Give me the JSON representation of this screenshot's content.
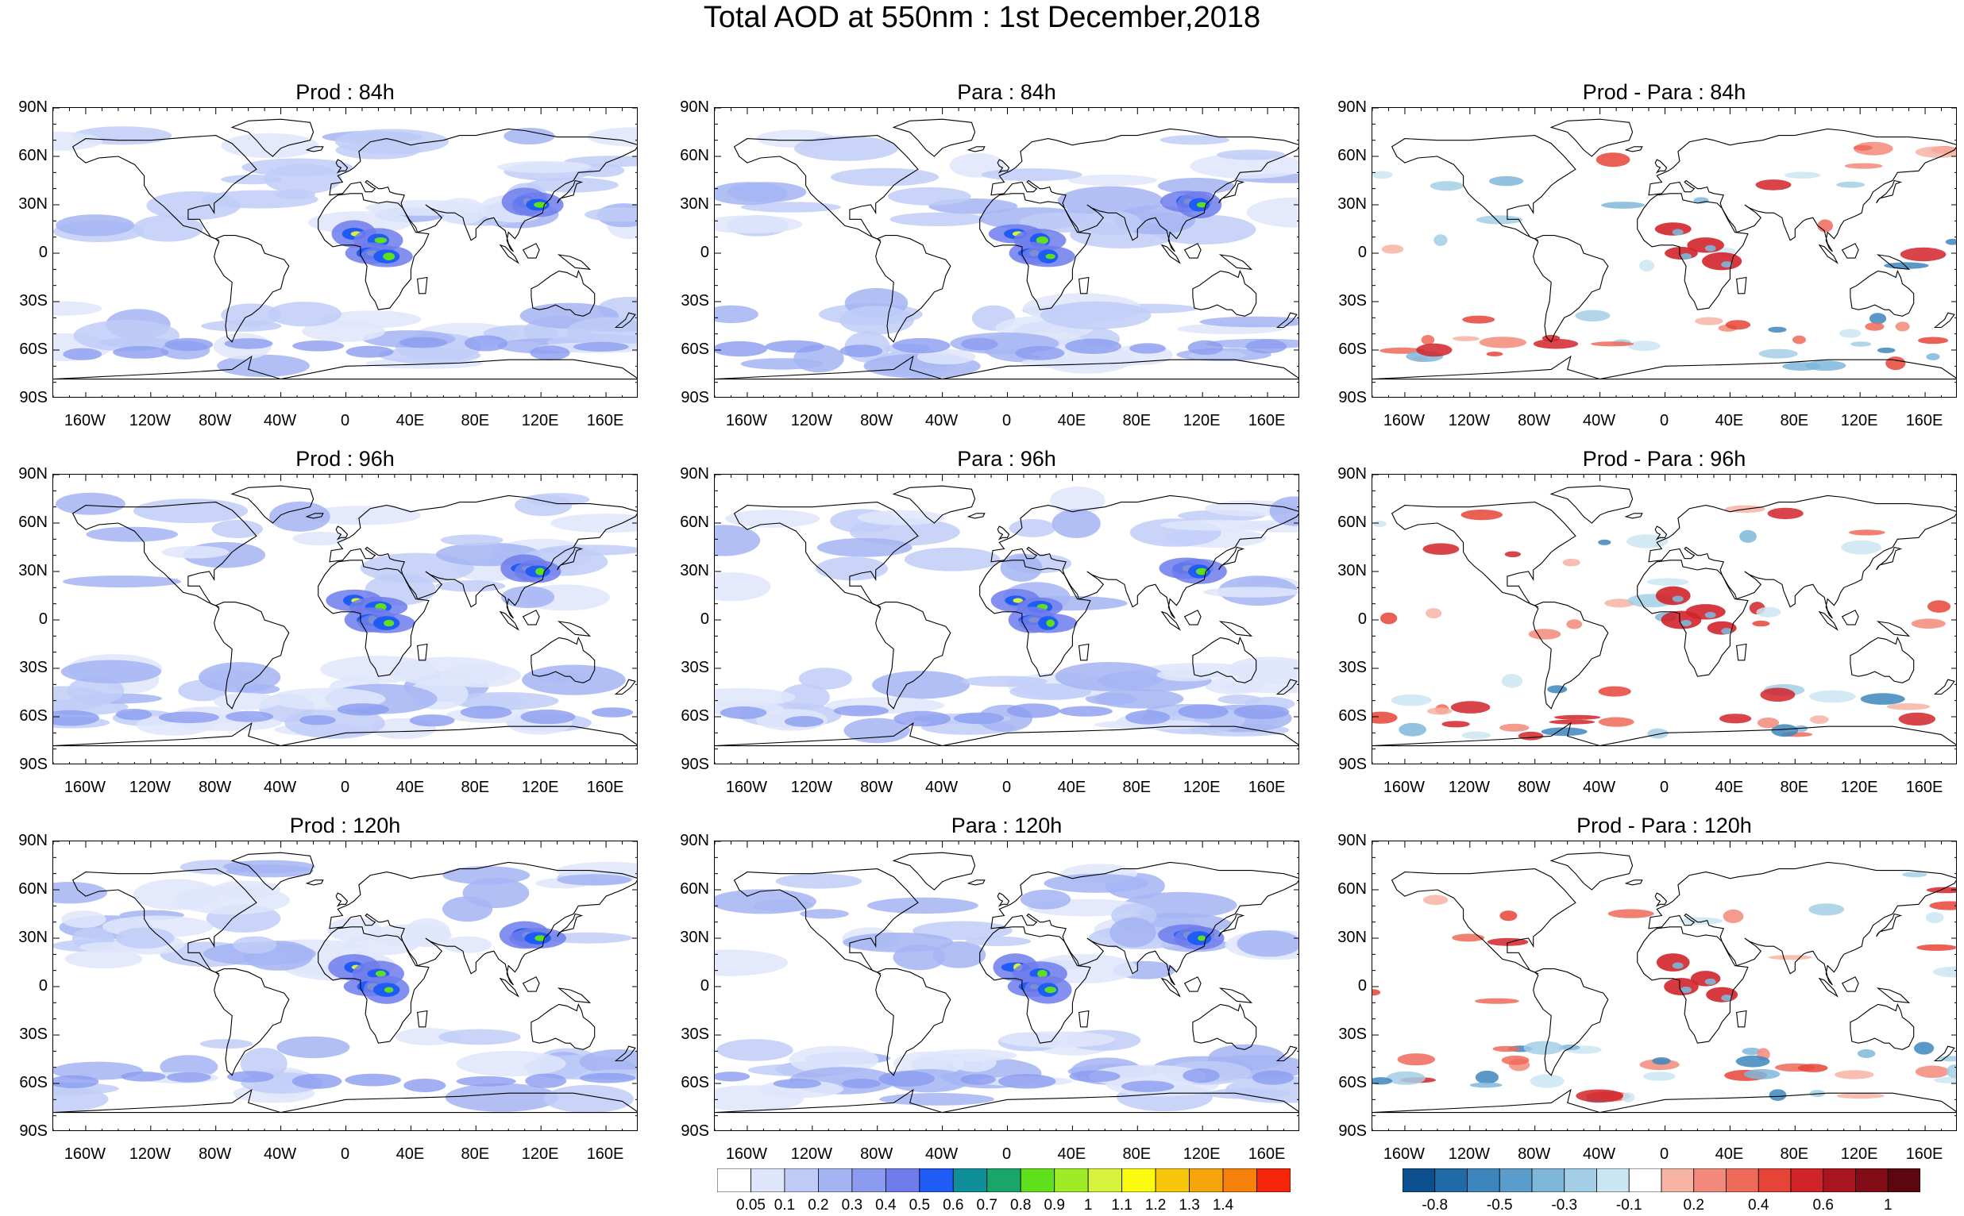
{
  "title": "Total AOD at 550nm : 1st December,2018",
  "lat_labels": [
    "90N",
    "60N",
    "30N",
    "0",
    "30S",
    "60S",
    "90S"
  ],
  "lon_labels": [
    "160W",
    "120W",
    "80W",
    "40W",
    "0",
    "40E",
    "80E",
    "120E",
    "160E"
  ],
  "panels": [
    {
      "title": "Prod : 84h",
      "kind": "aod",
      "seed": 1
    },
    {
      "title": "Para : 84h",
      "kind": "aod",
      "seed": 2
    },
    {
      "title": "Prod - Para : 84h",
      "kind": "diff",
      "seed": 3
    },
    {
      "title": "Prod : 96h",
      "kind": "aod",
      "seed": 4
    },
    {
      "title": "Para : 96h",
      "kind": "aod",
      "seed": 5
    },
    {
      "title": "Prod - Para : 96h",
      "kind": "diff",
      "seed": 6
    },
    {
      "title": "Prod : 120h",
      "kind": "aod",
      "seed": 7
    },
    {
      "title": "Para : 120h",
      "kind": "aod",
      "seed": 8
    },
    {
      "title": "Prod - Para : 120h",
      "kind": "diff",
      "seed": 9
    }
  ],
  "aod_colorbar": {
    "colors": [
      "#ffffff",
      "#dfe6fb",
      "#c0ccf7",
      "#a4b4f3",
      "#8b9cf0",
      "#6f7cec",
      "#1f5cf5",
      "#0f8f9a",
      "#1aa66a",
      "#5fe01a",
      "#9eec25",
      "#d7f23b",
      "#fbfb0f",
      "#f7c60b",
      "#f7a40b",
      "#f5800a",
      "#f5250a"
    ],
    "labels": [
      "0.05",
      "0.1",
      "0.2",
      "0.3",
      "0.4",
      "0.5",
      "0.6",
      "0.7",
      "0.8",
      "0.9",
      "1",
      "1.1",
      "1.2",
      "1.3",
      "1.4"
    ]
  },
  "diff_colorbar": {
    "colors": [
      "#0b4f8f",
      "#1f6aa7",
      "#3d86bd",
      "#5a9ccb",
      "#7fb7d9",
      "#a3cfe6",
      "#cbe6f3",
      "#ffffff",
      "#f7b3a4",
      "#f3897a",
      "#ee6a5a",
      "#e64437",
      "#d1232a",
      "#a91421",
      "#830d17",
      "#5c0610"
    ],
    "labels": [
      "-0.8",
      "-0.5",
      "-0.3",
      "-0.1",
      "0.2",
      "0.4",
      "0.6",
      "1"
    ]
  }
}
